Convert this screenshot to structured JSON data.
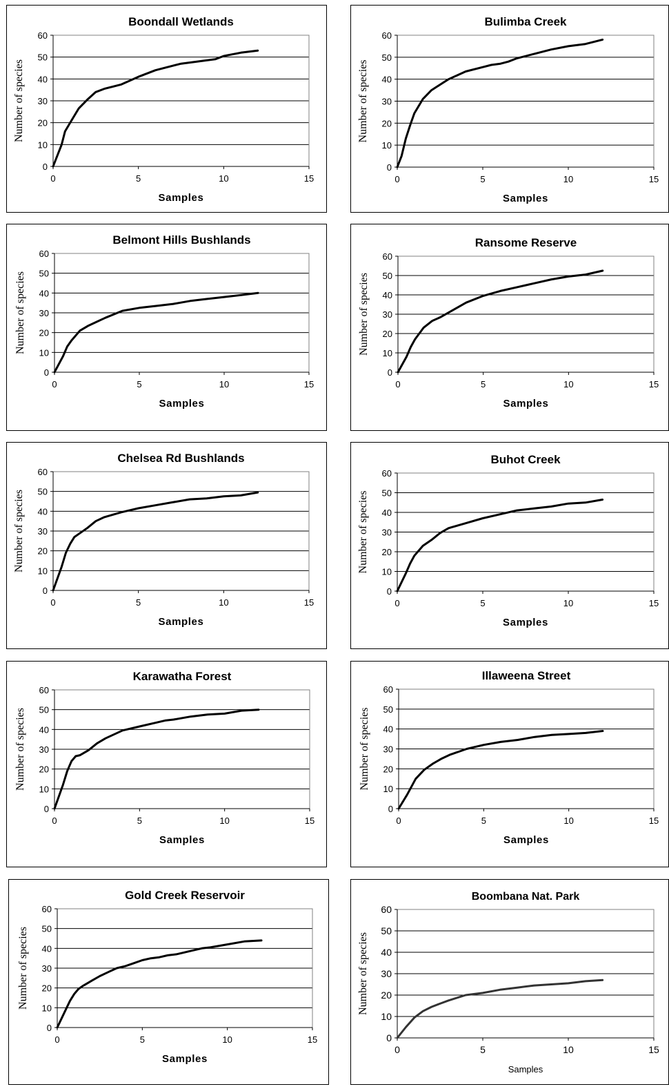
{
  "chart_data": [
    {
      "type": "line",
      "title": "Boondall Wetlands",
      "xlabel": "Samples",
      "ylabel": "Number of species",
      "xlim": [
        0,
        15
      ],
      "ylim": [
        0,
        60
      ],
      "xticks": [
        0,
        5,
        10,
        15
      ],
      "yticks": [
        0,
        10,
        20,
        30,
        40,
        50,
        60
      ],
      "grid": "horizontal",
      "series": [
        {
          "x": [
            0,
            0.5,
            0.7,
            1,
            1.5,
            2,
            2.5,
            3,
            4,
            5,
            6,
            7,
            7.5,
            8,
            9,
            9.5,
            10,
            11,
            12
          ],
          "y": [
            0,
            10,
            16,
            20,
            26.5,
            30.5,
            34,
            35.5,
            37.5,
            41,
            44,
            46,
            47,
            47.5,
            48.5,
            49,
            50.5,
            52,
            53
          ]
        }
      ]
    },
    {
      "type": "line",
      "title": "Bulimba Creek",
      "xlabel": "Samples",
      "ylabel": "Number of species",
      "xlim": [
        0,
        15
      ],
      "ylim": [
        0,
        60
      ],
      "xticks": [
        0,
        5,
        10,
        15
      ],
      "yticks": [
        0,
        10,
        20,
        30,
        40,
        50,
        60
      ],
      "grid": "horizontal",
      "series": [
        {
          "x": [
            0,
            0.25,
            0.5,
            0.75,
            1,
            1.5,
            2,
            2.5,
            3,
            4,
            5,
            5.5,
            6,
            6.5,
            7,
            8,
            9,
            10,
            11,
            12
          ],
          "y": [
            0,
            5,
            13,
            19,
            24.5,
            31,
            35,
            37.5,
            40,
            43.5,
            45.5,
            46.5,
            47,
            48,
            49.5,
            51.5,
            53.5,
            55,
            56,
            58
          ]
        }
      ]
    },
    {
      "type": "line",
      "title": "Belmont Hills Bushlands",
      "xlabel": "Samples",
      "ylabel": "Number of species",
      "xlim": [
        0,
        15
      ],
      "ylim": [
        0,
        60
      ],
      "xticks": [
        0,
        5,
        10,
        15
      ],
      "yticks": [
        0,
        10,
        20,
        30,
        40,
        50,
        60
      ],
      "grid": "horizontal",
      "series": [
        {
          "x": [
            0,
            0.5,
            0.75,
            1,
            1.5,
            2,
            2.5,
            3,
            4,
            5,
            6,
            7,
            8,
            9,
            10,
            11,
            12
          ],
          "y": [
            0,
            8,
            13,
            16,
            21,
            23.5,
            25.5,
            27.5,
            31,
            32.5,
            33.5,
            34.5,
            36,
            37,
            38,
            39,
            40
          ]
        }
      ]
    },
    {
      "type": "line",
      "title": "Ransome Reserve",
      "xlabel": "Samples",
      "ylabel": "Number of species",
      "xlim": [
        0,
        15
      ],
      "ylim": [
        0,
        60
      ],
      "xticks": [
        0,
        5,
        10,
        15
      ],
      "yticks": [
        0,
        10,
        20,
        30,
        40,
        50,
        60
      ],
      "grid": "horizontal",
      "series": [
        {
          "x": [
            0,
            0.5,
            0.75,
            1,
            1.5,
            2,
            2.5,
            3,
            4,
            5,
            6,
            7,
            7.5,
            8,
            9,
            10,
            11,
            12
          ],
          "y": [
            0,
            8,
            13,
            17,
            23,
            26.5,
            28.5,
            31,
            36,
            39.5,
            42,
            44,
            45,
            46,
            48,
            49.5,
            50.5,
            52.5
          ]
        }
      ]
    },
    {
      "type": "line",
      "title": "Chelsea Rd Bushlands",
      "xlabel": "Samples",
      "ylabel": "Number of species",
      "xlim": [
        0,
        15
      ],
      "ylim": [
        0,
        60
      ],
      "xticks": [
        0,
        5,
        10,
        15
      ],
      "yticks": [
        0,
        10,
        20,
        30,
        40,
        50,
        60
      ],
      "grid": "horizontal",
      "series": [
        {
          "x": [
            0,
            0.5,
            0.75,
            1,
            1.25,
            1.5,
            2,
            2.5,
            3,
            4,
            5,
            6,
            7,
            8,
            9,
            10,
            11,
            12
          ],
          "y": [
            0,
            12,
            19,
            23.5,
            27,
            28.5,
            31.5,
            35,
            37,
            39.5,
            41.5,
            43,
            44.5,
            46,
            46.5,
            47.5,
            48,
            49.5
          ]
        }
      ]
    },
    {
      "type": "line",
      "title": "Buhot Creek",
      "xlabel": "Samples",
      "ylabel": "Number of species",
      "xlim": [
        0,
        15
      ],
      "ylim": [
        0,
        60
      ],
      "xticks": [
        0,
        5,
        10,
        15
      ],
      "yticks": [
        0,
        10,
        20,
        30,
        40,
        50,
        60
      ],
      "grid": "horizontal",
      "series": [
        {
          "x": [
            0,
            0.5,
            0.75,
            1,
            1.5,
            2,
            2.5,
            3,
            4,
            5,
            6,
            7,
            8,
            9,
            10,
            11,
            12
          ],
          "y": [
            0,
            9,
            14,
            18,
            23,
            26,
            29.5,
            32,
            34.5,
            37,
            39,
            41,
            42,
            43,
            44.5,
            45,
            46.5
          ]
        }
      ]
    },
    {
      "type": "line",
      "title": "Karawatha Forest",
      "xlabel": "Samples",
      "ylabel": "Number of species",
      "xlim": [
        0,
        15
      ],
      "ylim": [
        0,
        60
      ],
      "xticks": [
        0,
        5,
        10,
        15
      ],
      "yticks": [
        0,
        10,
        20,
        30,
        40,
        50,
        60
      ],
      "grid": "horizontal",
      "series": [
        {
          "x": [
            0,
            0.5,
            0.75,
            1,
            1.25,
            1.5,
            2,
            2.5,
            3,
            4,
            5,
            6,
            6.5,
            7,
            8,
            9,
            10,
            11,
            12
          ],
          "y": [
            0,
            12,
            19,
            24,
            26.5,
            27,
            29.5,
            33,
            35.5,
            39.5,
            41.5,
            43.5,
            44.5,
            45,
            46.5,
            47.5,
            48,
            49.5,
            50
          ]
        }
      ]
    },
    {
      "type": "line",
      "title": "Illaweena Street",
      "xlabel": "Samples",
      "ylabel": "Number of species",
      "xlim": [
        0,
        15
      ],
      "ylim": [
        0,
        60
      ],
      "xticks": [
        0,
        5,
        10,
        15
      ],
      "yticks": [
        0,
        10,
        20,
        30,
        40,
        50,
        60
      ],
      "grid": "horizontal",
      "series": [
        {
          "x": [
            0,
            0.5,
            0.75,
            1,
            1.5,
            2,
            2.5,
            3,
            4,
            5,
            6,
            7,
            8,
            9,
            10,
            11,
            12
          ],
          "y": [
            0,
            7,
            11,
            15,
            19.5,
            22.5,
            25,
            27,
            30,
            32,
            33.5,
            34.5,
            36,
            37,
            37.5,
            38,
            39
          ]
        }
      ]
    },
    {
      "type": "line",
      "title": "Gold Creek Reservoir",
      "xlabel": "Samples",
      "ylabel": "Number of species",
      "xlim": [
        0,
        15
      ],
      "ylim": [
        0,
        60
      ],
      "xticks": [
        0,
        5,
        10,
        15
      ],
      "yticks": [
        0,
        10,
        20,
        30,
        40,
        50,
        60
      ],
      "grid": "horizontal",
      "series": [
        {
          "x": [
            0,
            0.5,
            0.75,
            1,
            1.25,
            1.5,
            2,
            2.5,
            3,
            3.5,
            4,
            4.5,
            5,
            5.5,
            6,
            6.5,
            7,
            8,
            8.5,
            9,
            10,
            11,
            12
          ],
          "y": [
            0,
            9,
            13.5,
            17,
            19.5,
            21,
            23.5,
            26,
            28,
            30,
            31,
            32.5,
            34,
            35,
            35.5,
            36.5,
            37,
            39,
            40,
            40.5,
            42,
            43.5,
            44
          ]
        }
      ]
    },
    {
      "type": "line",
      "title": "Boombana Nat. Park",
      "xlabel": "Samples",
      "ylabel": "Number of species",
      "xlim": [
        0,
        15
      ],
      "ylim": [
        0,
        60
      ],
      "xticks": [
        0,
        5,
        10,
        15
      ],
      "yticks": [
        0,
        10,
        20,
        30,
        40,
        50,
        60
      ],
      "grid": "horizontal",
      "series": [
        {
          "x": [
            0,
            0.5,
            1,
            1.5,
            2,
            2.5,
            3,
            4,
            5,
            6,
            7,
            8,
            9,
            10,
            11,
            12
          ],
          "y": [
            0,
            5,
            9.5,
            12.5,
            14.5,
            16,
            17.5,
            20,
            21,
            22.5,
            23.5,
            24.5,
            25,
            25.5,
            26.5,
            27
          ]
        }
      ]
    }
  ]
}
